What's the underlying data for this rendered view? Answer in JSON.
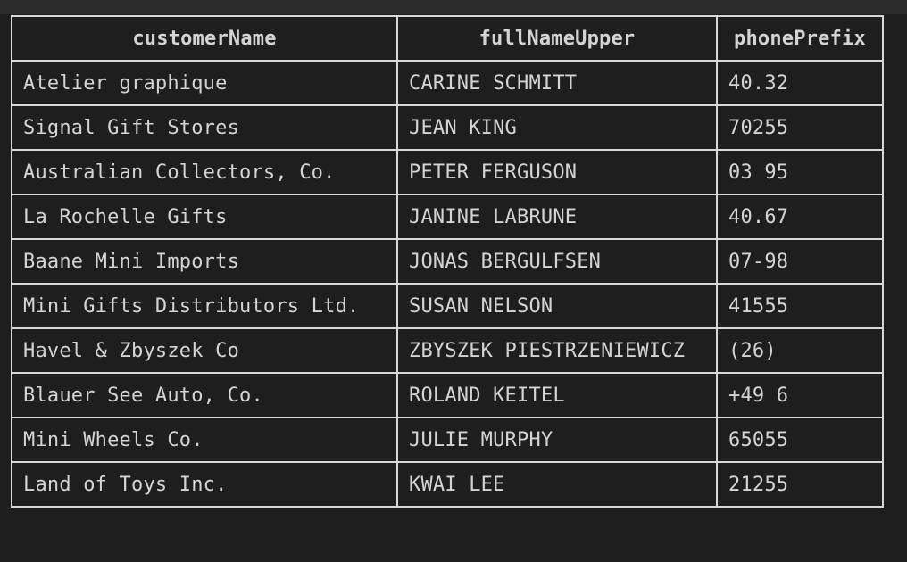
{
  "table": {
    "columns": [
      "customerName",
      "fullNameUpper",
      "phonePrefix"
    ],
    "rows": [
      [
        "Atelier graphique",
        "CARINE SCHMITT",
        "40.32"
      ],
      [
        "Signal Gift Stores",
        "JEAN KING",
        "70255"
      ],
      [
        "Australian Collectors, Co.",
        "PETER FERGUSON",
        "03 95"
      ],
      [
        "La Rochelle Gifts",
        "JANINE LABRUNE",
        "40.67"
      ],
      [
        "Baane Mini Imports",
        "JONAS BERGULFSEN",
        "07-98"
      ],
      [
        "Mini Gifts Distributors Ltd.",
        "SUSAN NELSON",
        "41555"
      ],
      [
        "Havel & Zbyszek Co",
        "ZBYSZEK PIESTRZENIEWICZ",
        "(26)"
      ],
      [
        "Blauer See Auto, Co.",
        "ROLAND KEITEL",
        "+49 6"
      ],
      [
        "Mini Wheels Co.",
        "JULIE MURPHY",
        "65055"
      ],
      [
        "Land of Toys Inc.",
        "KWAI LEE",
        "21255"
      ]
    ]
  }
}
